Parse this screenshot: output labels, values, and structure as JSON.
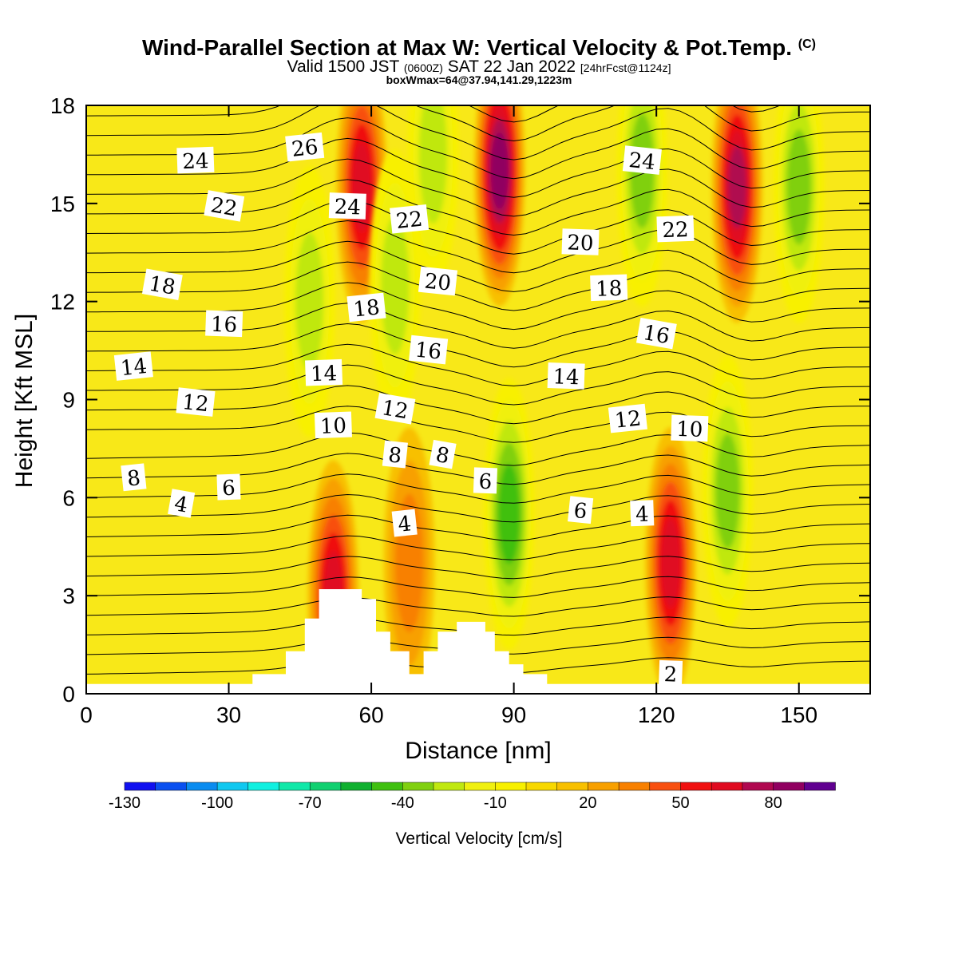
{
  "header": {
    "title": "Wind-Parallel Section at Max W: Vertical Velocity & Pot.Temp.",
    "title_mark": "(C)",
    "valid_prefix": "Valid 1500 JST",
    "valid_utc": "(0600Z)",
    "valid_date": "SAT 22 Jan 2022",
    "forecast": "[24hrFcst@1124z]",
    "box_info": "boxWmax=64@37.94,141.29,1223m"
  },
  "chart_data": {
    "type": "heatmap",
    "xlabel": "Distance [nm]",
    "ylabel": "Height [Kft MSL]",
    "xlim": [
      0,
      165
    ],
    "ylim": [
      0,
      18
    ],
    "x_ticks": [
      0,
      30,
      60,
      90,
      120,
      150
    ],
    "y_ticks": [
      0,
      3,
      6,
      9,
      12,
      15,
      18
    ],
    "colorbar": {
      "label": "Vertical Velocity [cm/s]",
      "levels": [
        -130,
        -120,
        -110,
        -100,
        -90,
        -80,
        -70,
        -60,
        -50,
        -40,
        -30,
        -20,
        -10,
        0,
        10,
        20,
        30,
        40,
        50,
        60,
        70,
        80,
        90
      ],
      "tick_labels": [
        -130,
        -100,
        -70,
        -40,
        -10,
        20,
        50,
        80
      ],
      "colors": [
        "#1010f0",
        "#0a50f0",
        "#0a8cf0",
        "#10c8f0",
        "#10f0e0",
        "#10e8a8",
        "#10d070",
        "#10b030",
        "#40c010",
        "#80d010",
        "#c0e810",
        "#f0f010",
        "#f8f000",
        "#f8d800",
        "#f8c000",
        "#f8a000",
        "#f88000",
        "#f85010",
        "#f01010",
        "#e00a20",
        "#b00850",
        "#900060",
        "#600090"
      ]
    },
    "terrain": [
      [
        0,
        0.3
      ],
      [
        35,
        0.3
      ],
      [
        35,
        0.6
      ],
      [
        42,
        0.6
      ],
      [
        42,
        1.3
      ],
      [
        46,
        1.3
      ],
      [
        46,
        2.3
      ],
      [
        49,
        2.3
      ],
      [
        49,
        3.2
      ],
      [
        58,
        3.2
      ],
      [
        58,
        2.9
      ],
      [
        61,
        2.9
      ],
      [
        61,
        1.9
      ],
      [
        64,
        1.9
      ],
      [
        64,
        1.3
      ],
      [
        68,
        1.3
      ],
      [
        68,
        0.6
      ],
      [
        71,
        0.6
      ],
      [
        71,
        1.3
      ],
      [
        74,
        1.3
      ],
      [
        74,
        1.9
      ],
      [
        78,
        1.9
      ],
      [
        78,
        2.2
      ],
      [
        84,
        2.2
      ],
      [
        84,
        1.9
      ],
      [
        86,
        1.9
      ],
      [
        86,
        1.3
      ],
      [
        89,
        1.3
      ],
      [
        89,
        0.9
      ],
      [
        92,
        0.9
      ],
      [
        92,
        0.6
      ],
      [
        97,
        0.6
      ],
      [
        97,
        0.3
      ],
      [
        165,
        0.3
      ],
      [
        165,
        0
      ]
    ],
    "w_features": [
      {
        "x": 52,
        "y": 3.0,
        "value": 55
      },
      {
        "x": 58,
        "y": 15.5,
        "value": 55
      },
      {
        "x": 68,
        "y": 4.0,
        "value": 25
      },
      {
        "x": 73,
        "y": 16.5,
        "value": -30
      },
      {
        "x": 65,
        "y": 12.5,
        "value": -25
      },
      {
        "x": 87,
        "y": 16.0,
        "value": 75
      },
      {
        "x": 89,
        "y": 5.5,
        "value": -45
      },
      {
        "x": 117,
        "y": 16.0,
        "value": -35
      },
      {
        "x": 123,
        "y": 4.0,
        "value": 60
      },
      {
        "x": 135,
        "y": 6.2,
        "value": -40
      },
      {
        "x": 137,
        "y": 15.5,
        "value": 70
      },
      {
        "x": 150,
        "y": 15.5,
        "value": -35
      },
      {
        "x": 47,
        "y": 12.0,
        "value": -30
      }
    ],
    "theta_contour_labels": [
      {
        "value": "26",
        "x": 46,
        "y": 16.7
      },
      {
        "value": "24",
        "x": 23,
        "y": 16.3
      },
      {
        "value": "24",
        "x": 55,
        "y": 14.9
      },
      {
        "value": "24",
        "x": 117,
        "y": 16.3
      },
      {
        "value": "22",
        "x": 29,
        "y": 14.9
      },
      {
        "value": "22",
        "x": 68,
        "y": 14.5
      },
      {
        "value": "22",
        "x": 124,
        "y": 14.2
      },
      {
        "value": "20",
        "x": 104,
        "y": 13.8
      },
      {
        "value": "20",
        "x": 74,
        "y": 12.6
      },
      {
        "value": "18",
        "x": 16,
        "y": 12.5
      },
      {
        "value": "18",
        "x": 59,
        "y": 11.8
      },
      {
        "value": "18",
        "x": 110,
        "y": 12.4
      },
      {
        "value": "16",
        "x": 29,
        "y": 11.3
      },
      {
        "value": "16",
        "x": 72,
        "y": 10.5
      },
      {
        "value": "16",
        "x": 120,
        "y": 11.0
      },
      {
        "value": "14",
        "x": 10,
        "y": 10.0
      },
      {
        "value": "14",
        "x": 50,
        "y": 9.8
      },
      {
        "value": "14",
        "x": 101,
        "y": 9.7
      },
      {
        "value": "12",
        "x": 23,
        "y": 8.9
      },
      {
        "value": "12",
        "x": 65,
        "y": 8.7
      },
      {
        "value": "12",
        "x": 114,
        "y": 8.4
      },
      {
        "value": "10",
        "x": 52,
        "y": 8.2
      },
      {
        "value": "10",
        "x": 127,
        "y": 8.1
      },
      {
        "value": "8",
        "x": 65,
        "y": 7.3
      },
      {
        "value": "8",
        "x": 75,
        "y": 7.3
      },
      {
        "value": "8",
        "x": 10,
        "y": 6.6
      },
      {
        "value": "6",
        "x": 30,
        "y": 6.3
      },
      {
        "value": "6",
        "x": 84,
        "y": 6.5
      },
      {
        "value": "6",
        "x": 104,
        "y": 5.6
      },
      {
        "value": "4",
        "x": 20,
        "y": 5.8
      },
      {
        "value": "4",
        "x": 67,
        "y": 5.2
      },
      {
        "value": "4",
        "x": 117,
        "y": 5.5
      },
      {
        "value": "2",
        "x": 123,
        "y": 0.6
      }
    ]
  }
}
